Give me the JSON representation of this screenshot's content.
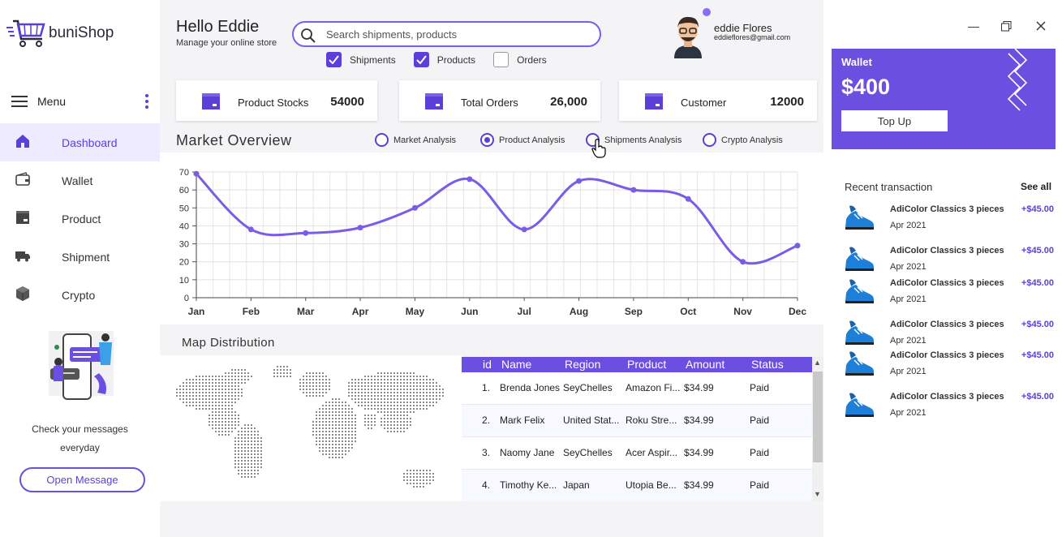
{
  "app": {
    "logo_part1": "buni",
    "logo_part2": "Shop"
  },
  "sidebar": {
    "menu_label": "Menu",
    "items": [
      {
        "label": "Dashboard",
        "icon": "home-icon",
        "active": true
      },
      {
        "label": "Wallet",
        "icon": "wallet-icon"
      },
      {
        "label": "Product",
        "icon": "product-icon"
      },
      {
        "label": "Shipment",
        "icon": "truck-icon"
      },
      {
        "label": "Crypto",
        "icon": "cube-icon"
      }
    ],
    "promo_text_line1": "Check your messages",
    "promo_text_line2": "everyday",
    "open_message": "Open Message"
  },
  "header": {
    "greeting": "Hello Eddie",
    "subtitle": "Manage your online store",
    "search_placeholder": "Search shipments, products",
    "filters": [
      {
        "label": "Shipments",
        "checked": true
      },
      {
        "label": "Products",
        "checked": true
      },
      {
        "label": "Orders",
        "checked": false
      }
    ],
    "user_name": "eddie Flores",
    "user_email": "eddieflores@gmail.com"
  },
  "stats": [
    {
      "title": "Product Stocks",
      "value": "54000"
    },
    {
      "title": "Total Orders",
      "value": "26,000"
    },
    {
      "title": "Customer",
      "value": "12000"
    }
  ],
  "market": {
    "title": "Market Overview",
    "options": [
      {
        "label": "Market Analysis",
        "selected": false
      },
      {
        "label": "Product Analysis",
        "selected": true
      },
      {
        "label": "Shipments Analysis",
        "selected": false
      },
      {
        "label": "Crypto Analysis",
        "selected": false
      }
    ]
  },
  "chart_data": {
    "type": "line",
    "categories": [
      "Jan",
      "Feb",
      "Mar",
      "Apr",
      "May",
      "Jun",
      "Jul",
      "Aug",
      "Sep",
      "Oct",
      "Nov",
      "Dec"
    ],
    "series": [
      {
        "values": [
          69,
          38,
          36,
          39,
          50,
          66,
          38,
          65,
          60,
          55,
          20,
          29
        ],
        "color": "#7a5ce6"
      }
    ],
    "ylim": [
      0,
      70
    ],
    "yticks": [
      0,
      10,
      20,
      30,
      40,
      50,
      60,
      70
    ],
    "grid": true
  },
  "map": {
    "title": "Map Distribution"
  },
  "table": {
    "columns": [
      "id",
      "Name",
      "Region",
      "Product",
      "Amount",
      "Status"
    ],
    "rows": [
      {
        "id": "1.",
        "name": "Brenda Jones",
        "region": "SeyChelles",
        "product": "Amazon Fi...",
        "amount": "$34.99",
        "status": "Paid"
      },
      {
        "id": "2.",
        "name": "Mark Felix",
        "region": "United Stat...",
        "product": "Roku Stre...",
        "amount": "$34.99",
        "status": "Paid"
      },
      {
        "id": "3.",
        "name": "Naomy Jane",
        "region": "SeyChelles",
        "product": "Acer Aspir...",
        "amount": "$34.99",
        "status": "Paid"
      },
      {
        "id": "4.",
        "name": "Timothy Ke...",
        "region": "Japan",
        "product": "Utopia Be...",
        "amount": "$34.99",
        "status": "Paid"
      }
    ]
  },
  "wallet": {
    "title": "Wallet",
    "amount": "$400",
    "topup": "Top Up"
  },
  "recent": {
    "title": "Recent transaction",
    "see_all": "See all",
    "items": [
      {
        "name": "AdiColor Classics 3 pieces",
        "date": "Apr 2021",
        "amount": "+$45.00"
      },
      {
        "name": "AdiColor Classics 3 pieces",
        "date": "Apr 2021",
        "amount": "+$45.00"
      },
      {
        "name": "AdiColor Classics 3 pieces",
        "date": "Apr 2021",
        "amount": "+$45.00"
      },
      {
        "name": "AdiColor Classics 3 pieces",
        "date": "Apr 2021",
        "amount": "+$45.00"
      },
      {
        "name": "AdiColor Classics 3 pieces",
        "date": "Apr 2021",
        "amount": "+$45.00"
      },
      {
        "name": "AdiColor Classics 3 pieces",
        "date": "Apr 2021",
        "amount": "+$45.00"
      }
    ]
  },
  "colors": {
    "accent": "#6a4fe0",
    "accent_dark": "#5b3fd8",
    "line": "#7a5ce6"
  }
}
